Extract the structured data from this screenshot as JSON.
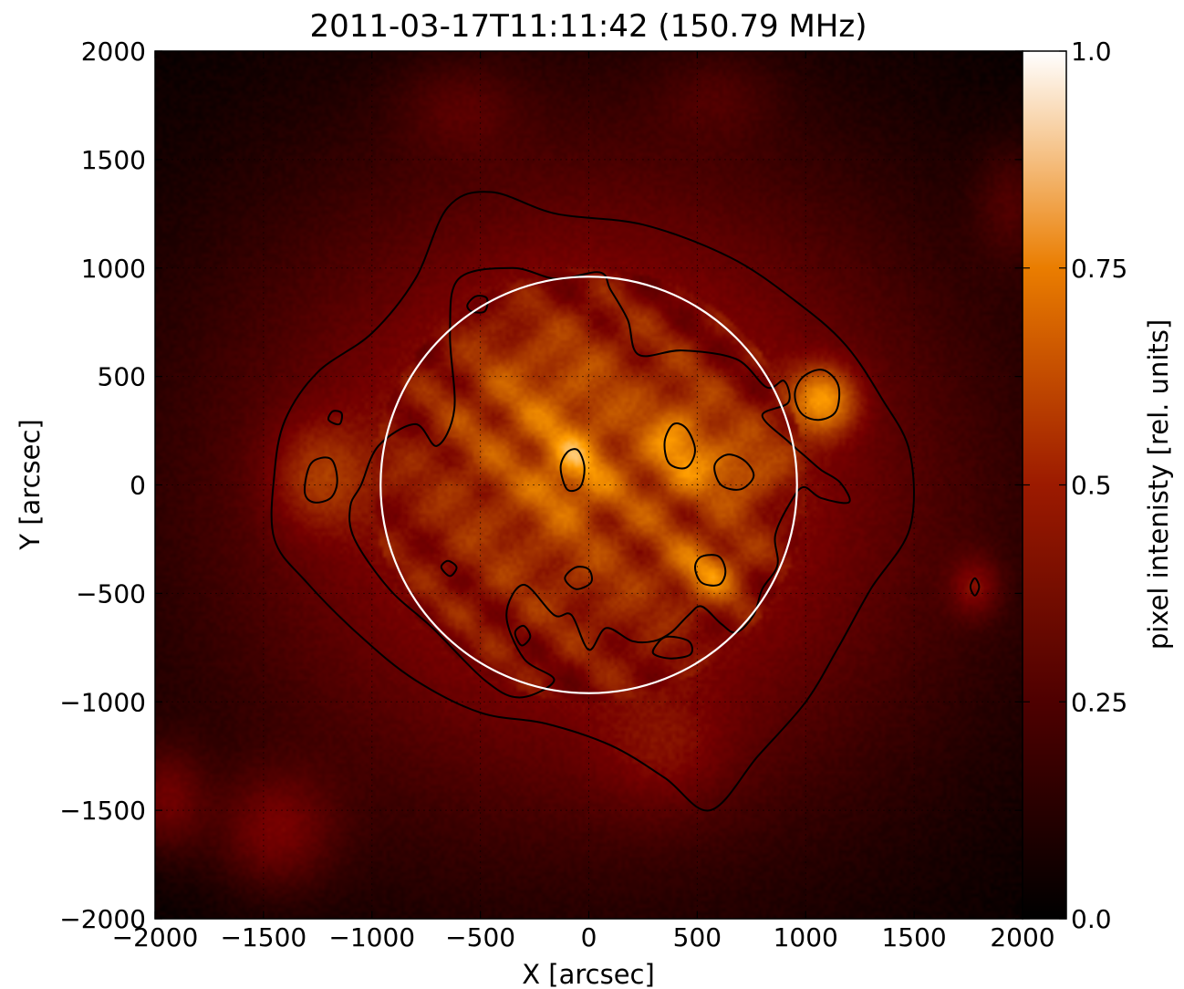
{
  "chart_data": {
    "type": "heatmap",
    "title": "2011-03-17T11:11:42  (150.79 MHz)",
    "xlabel": "X [arcsec]",
    "ylabel": "Y [arcsec]",
    "xlim": [
      -2000,
      2000
    ],
    "ylim": [
      -2000,
      2000
    ],
    "xticks": [
      -2000,
      -1500,
      -1000,
      -500,
      0,
      500,
      1000,
      1500,
      2000
    ],
    "yticks": [
      -2000,
      -1500,
      -1000,
      -500,
      0,
      500,
      1000,
      1500,
      2000
    ],
    "xtick_labels": [
      "−2000",
      "−1500",
      "−1000",
      "−500",
      "0",
      "500",
      "1000",
      "1500",
      "2000"
    ],
    "ytick_labels": [
      "−2000",
      "−1500",
      "−1000",
      "−500",
      "0",
      "500",
      "1000",
      "1500",
      "2000"
    ],
    "grid": true,
    "colormap": "gist_heat",
    "colorbar": {
      "label": "pixel intenisty [rel. units]",
      "range": [
        0.0,
        1.0
      ],
      "ticks": [
        0.0,
        0.25,
        0.5,
        0.75,
        1.0
      ],
      "tick_labels": [
        "0.0",
        "0.25",
        "0.5",
        "0.75",
        "1.0"
      ]
    },
    "solar_limb": {
      "center": [
        0,
        0
      ],
      "radius": 960,
      "color": "#ffffff"
    },
    "emission_sources": [
      {
        "x": 0,
        "y": 0,
        "sx": 1250,
        "sy": 1150,
        "intensity": 0.5
      },
      {
        "x": 1080,
        "y": 390,
        "sx": 110,
        "sy": 110,
        "intensity": 0.42
      },
      {
        "x": -1250,
        "y": 40,
        "sx": 160,
        "sy": 180,
        "intensity": 0.2
      },
      {
        "x": 420,
        "y": 180,
        "sx": 110,
        "sy": 150,
        "intensity": 0.22
      },
      {
        "x": -80,
        "y": 60,
        "sx": 110,
        "sy": 140,
        "intensity": 0.2
      },
      {
        "x": 560,
        "y": -400,
        "sx": 120,
        "sy": 100,
        "intensity": 0.22
      },
      {
        "x": 700,
        "y": 80,
        "sx": 130,
        "sy": 110,
        "intensity": 0.18
      },
      {
        "x": -250,
        "y": 420,
        "sx": 260,
        "sy": 260,
        "intensity": 0.1
      },
      {
        "x": -1450,
        "y": -1600,
        "sx": 200,
        "sy": 200,
        "intensity": 0.25
      },
      {
        "x": 350,
        "y": -1250,
        "sx": 220,
        "sy": 200,
        "intensity": 0.12
      },
      {
        "x": 1780,
        "y": -470,
        "sx": 80,
        "sy": 100,
        "intensity": 0.22
      },
      {
        "x": -1950,
        "y": -1450,
        "sx": 130,
        "sy": 180,
        "intensity": 0.25
      },
      {
        "x": 1950,
        "y": 1300,
        "sx": 120,
        "sy": 200,
        "intensity": 0.15
      },
      {
        "x": -600,
        "y": 1750,
        "sx": 200,
        "sy": 150,
        "intensity": 0.12
      },
      {
        "x": 600,
        "y": 1800,
        "sx": 200,
        "sy": 150,
        "intensity": 0.1
      }
    ],
    "contours": [
      {
        "name": "outer",
        "points": [
          [
            -1450,
            50
          ],
          [
            -1400,
            300
          ],
          [
            -1250,
            520
          ],
          [
            -1000,
            700
          ],
          [
            -800,
            950
          ],
          [
            -650,
            1280
          ],
          [
            -450,
            1350
          ],
          [
            -150,
            1250
          ],
          [
            250,
            1200
          ],
          [
            650,
            1050
          ],
          [
            950,
            850
          ],
          [
            1180,
            650
          ],
          [
            1350,
            400
          ],
          [
            1480,
            150
          ],
          [
            1480,
            -200
          ],
          [
            1300,
            -480
          ],
          [
            1150,
            -750
          ],
          [
            1000,
            -1000
          ],
          [
            780,
            -1250
          ],
          [
            560,
            -1500
          ],
          [
            350,
            -1350
          ],
          [
            100,
            -1200
          ],
          [
            -200,
            -1100
          ],
          [
            -500,
            -1050
          ],
          [
            -800,
            -900
          ],
          [
            -1050,
            -700
          ],
          [
            -1300,
            -450
          ],
          [
            -1450,
            -250
          ]
        ]
      },
      {
        "name": "inner",
        "points": [
          [
            -1050,
            0
          ],
          [
            -970,
            180
          ],
          [
            -800,
            280
          ],
          [
            -700,
            180
          ],
          [
            -620,
            350
          ],
          [
            -640,
            700
          ],
          [
            -600,
            950
          ],
          [
            -350,
            1000
          ],
          [
            -150,
            950
          ],
          [
            50,
            980
          ],
          [
            100,
            900
          ],
          [
            180,
            760
          ],
          [
            230,
            600
          ],
          [
            430,
            620
          ],
          [
            680,
            580
          ],
          [
            820,
            450
          ],
          [
            900,
            480
          ],
          [
            920,
            380
          ],
          [
            800,
            320
          ],
          [
            920,
            200
          ],
          [
            1000,
            130
          ],
          [
            1070,
            70
          ],
          [
            1160,
            10
          ],
          [
            1200,
            -80
          ],
          [
            1070,
            -60
          ],
          [
            990,
            -10
          ],
          [
            930,
            -80
          ],
          [
            860,
            -230
          ],
          [
            870,
            -370
          ],
          [
            800,
            -480
          ],
          [
            760,
            -600
          ],
          [
            680,
            -680
          ],
          [
            610,
            -640
          ],
          [
            520,
            -560
          ],
          [
            460,
            -600
          ],
          [
            380,
            -680
          ],
          [
            300,
            -720
          ],
          [
            200,
            -720
          ],
          [
            80,
            -660
          ],
          [
            0,
            -760
          ],
          [
            -80,
            -600
          ],
          [
            -160,
            -600
          ],
          [
            -300,
            -460
          ],
          [
            -380,
            -600
          ],
          [
            -300,
            -800
          ],
          [
            -160,
            -900
          ],
          [
            -320,
            -980
          ],
          [
            -480,
            -900
          ],
          [
            -720,
            -660
          ],
          [
            -920,
            -480
          ],
          [
            -1080,
            -250
          ],
          [
            -1100,
            -100
          ]
        ]
      },
      {
        "name": "hot-spot-ring",
        "points": [
          [
            950,
            420
          ],
          [
            990,
            500
          ],
          [
            1080,
            530
          ],
          [
            1150,
            460
          ],
          [
            1140,
            340
          ],
          [
            1060,
            300
          ],
          [
            980,
            330
          ]
        ]
      },
      {
        "name": "west-blob",
        "points": [
          [
            -1310,
            -30
          ],
          [
            -1280,
            100
          ],
          [
            -1190,
            120
          ],
          [
            -1160,
            20
          ],
          [
            -1190,
            -60
          ],
          [
            -1270,
            -80
          ]
        ]
      },
      {
        "name": "island-1",
        "points": [
          [
            -130,
            80
          ],
          [
            -100,
            150
          ],
          [
            -50,
            160
          ],
          [
            -20,
            80
          ],
          [
            -40,
            -10
          ],
          [
            -100,
            -20
          ]
        ]
      },
      {
        "name": "island-2",
        "points": [
          [
            350,
            200
          ],
          [
            390,
            280
          ],
          [
            450,
            260
          ],
          [
            490,
            160
          ],
          [
            450,
            80
          ],
          [
            370,
            100
          ]
        ]
      },
      {
        "name": "island-3",
        "points": [
          [
            490,
            -380
          ],
          [
            520,
            -330
          ],
          [
            600,
            -330
          ],
          [
            630,
            -400
          ],
          [
            600,
            -460
          ],
          [
            520,
            -450
          ]
        ]
      },
      {
        "name": "island-4",
        "points": [
          [
            580,
            90
          ],
          [
            640,
            140
          ],
          [
            720,
            110
          ],
          [
            760,
            40
          ],
          [
            700,
            -20
          ],
          [
            610,
            0
          ]
        ]
      },
      {
        "name": "island-5",
        "points": [
          [
            -110,
            -430
          ],
          [
            -60,
            -380
          ],
          [
            0,
            -390
          ],
          [
            10,
            -450
          ],
          [
            -60,
            -480
          ]
        ]
      },
      {
        "name": "island-6",
        "points": [
          [
            -680,
            -380
          ],
          [
            -650,
            -350
          ],
          [
            -610,
            -380
          ],
          [
            -640,
            -420
          ]
        ]
      },
      {
        "name": "island-7",
        "points": [
          [
            -340,
            -680
          ],
          [
            -300,
            -650
          ],
          [
            -270,
            -700
          ],
          [
            -310,
            -740
          ]
        ]
      },
      {
        "name": "island-8",
        "points": [
          [
            310,
            -740
          ],
          [
            360,
            -700
          ],
          [
            460,
            -720
          ],
          [
            470,
            -780
          ],
          [
            380,
            -800
          ],
          [
            300,
            -780
          ]
        ]
      },
      {
        "name": "island-9",
        "points": [
          [
            -560,
            830
          ],
          [
            -520,
            870
          ],
          [
            -470,
            860
          ],
          [
            -480,
            800
          ],
          [
            -540,
            800
          ]
        ]
      },
      {
        "name": "island-10",
        "points": [
          [
            1760,
            -470
          ],
          [
            1780,
            -430
          ],
          [
            1800,
            -470
          ],
          [
            1780,
            -510
          ]
        ]
      },
      {
        "name": "island-11",
        "points": [
          [
            -1200,
            300
          ],
          [
            -1180,
            340
          ],
          [
            -1140,
            330
          ],
          [
            -1150,
            280
          ]
        ]
      }
    ]
  }
}
